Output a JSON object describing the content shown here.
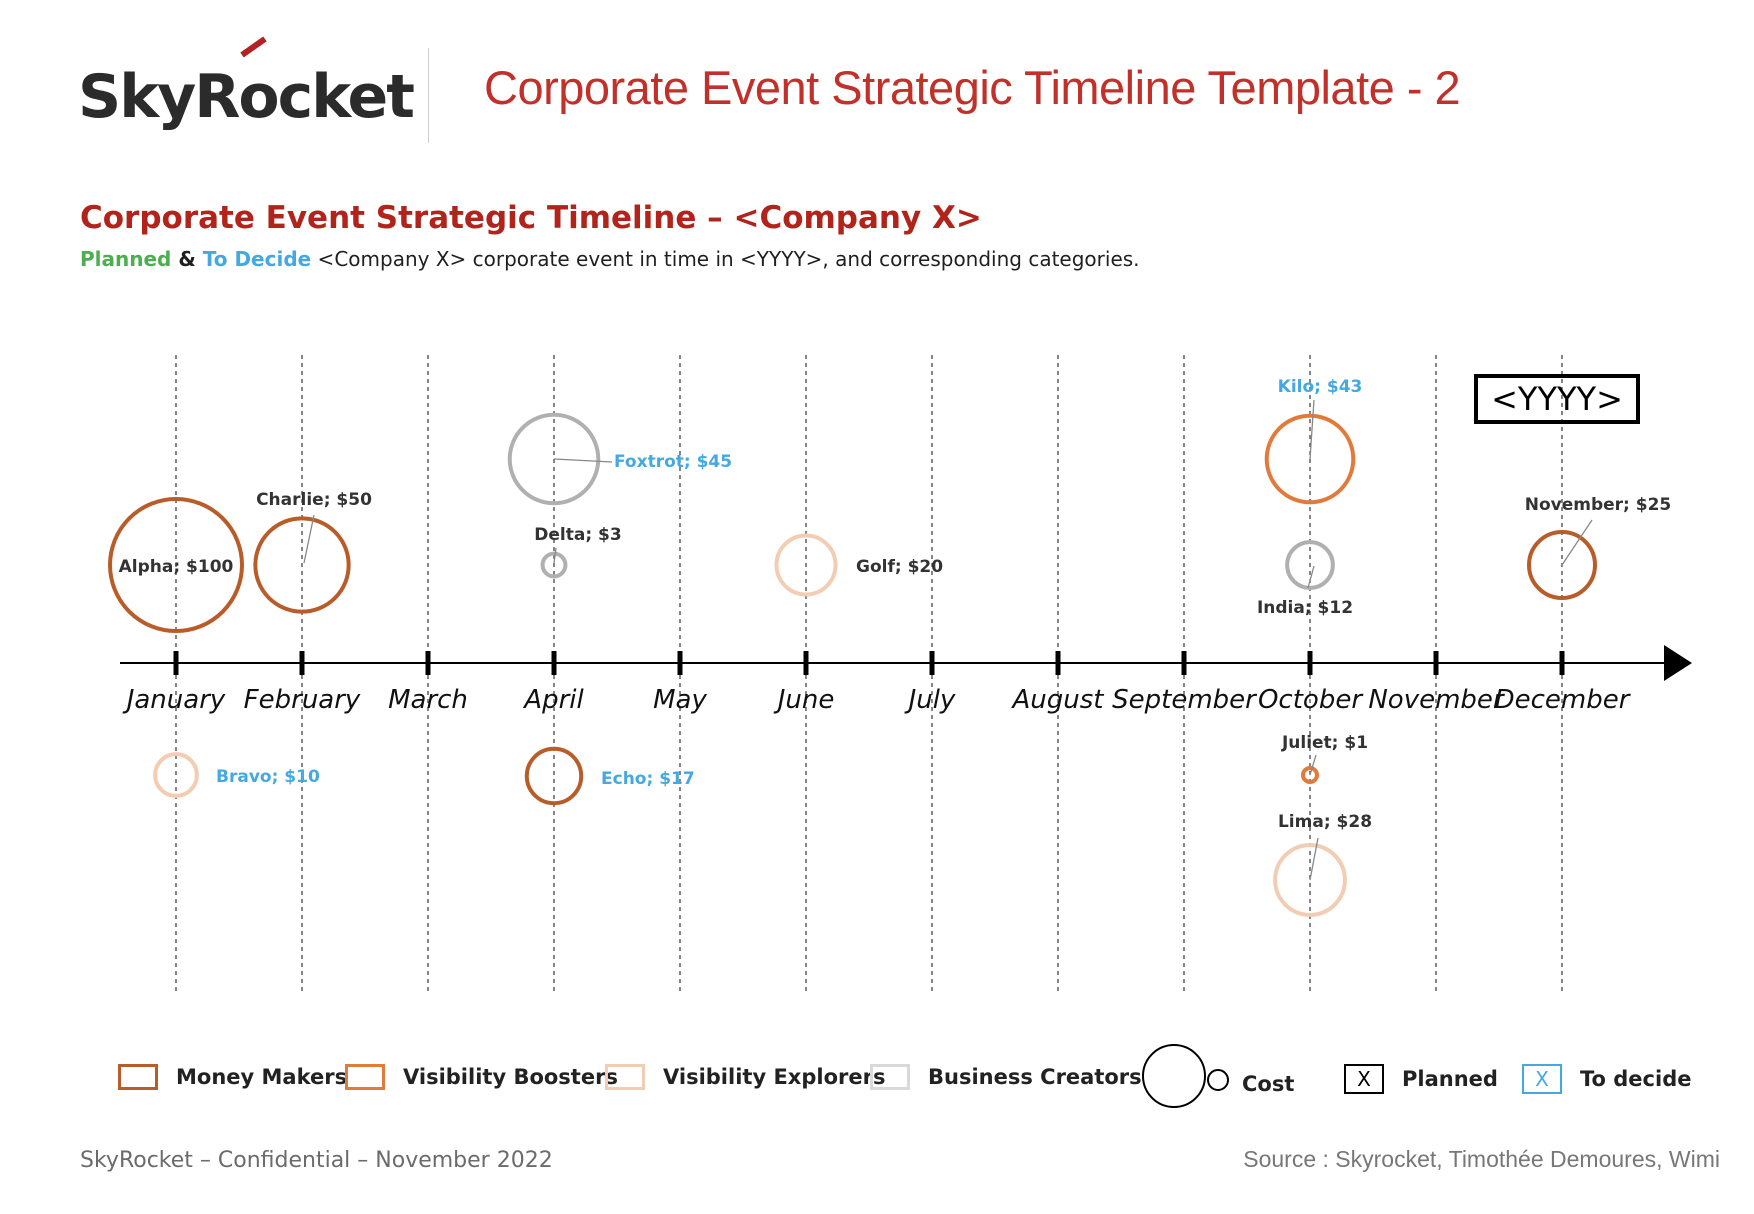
{
  "header": {
    "logo_text": "SkyRocket",
    "title": "Corporate Event Strategic Timeline Template - 2"
  },
  "section": {
    "title": "Corporate Event Strategic Timeline – <Company X>",
    "subtitle_planned": "Planned",
    "subtitle_amp": " & ",
    "subtitle_decide": "To Decide",
    "subtitle_rest": " <Company X> corporate event in time in <YYYY>, and corresponding categories."
  },
  "year_label": "<YYYY>",
  "colors": {
    "money_makers": "#b85c2a",
    "visibility_boosters": "#e07b3c",
    "visibility_explorers": "#f2cdb3",
    "business_creators": "#b0b0b0",
    "planned_label": "#333333",
    "to_decide_label": "#45a9e0",
    "title_red": "#c0312b"
  },
  "chart_data": {
    "type": "bubble-timeline",
    "categories": [
      "January",
      "February",
      "March",
      "April",
      "May",
      "June",
      "July",
      "August",
      "September",
      "October",
      "November",
      "December"
    ],
    "events": [
      {
        "name": "Alpha",
        "cost": 100,
        "month": "January",
        "side": "above",
        "category": "Money Makers",
        "status": "Planned",
        "label": "Alpha;  $100"
      },
      {
        "name": "Bravo",
        "cost": 10,
        "month": "January",
        "side": "below",
        "category": "Visibility Explorers",
        "status": "To decide",
        "label": "Bravo;  $10"
      },
      {
        "name": "Charlie",
        "cost": 50,
        "month": "February",
        "side": "above",
        "category": "Money Makers",
        "status": "Planned",
        "label": "Charlie;  $50"
      },
      {
        "name": "Delta",
        "cost": 3,
        "month": "April",
        "side": "above",
        "category": "Business Creators",
        "status": "Planned",
        "label": "Delta;  $3"
      },
      {
        "name": "Echo",
        "cost": 17,
        "month": "April",
        "side": "below",
        "category": "Money Makers",
        "status": "To decide",
        "label": "Echo;  $17"
      },
      {
        "name": "Foxtrot",
        "cost": 45,
        "month": "April",
        "side": "above",
        "category": "Business Creators",
        "status": "To decide",
        "label": "Foxtrot;  $45"
      },
      {
        "name": "Golf",
        "cost": 20,
        "month": "June",
        "side": "above",
        "category": "Visibility Explorers",
        "status": "Planned",
        "label": "Golf;  $20"
      },
      {
        "name": "India",
        "cost": 12,
        "month": "October",
        "side": "above",
        "category": "Business Creators",
        "status": "Planned",
        "label": "India;  $12"
      },
      {
        "name": "Juliet",
        "cost": 1,
        "month": "October",
        "side": "below",
        "category": "Visibility Boosters",
        "status": "Planned",
        "label": "Juliet;  $1"
      },
      {
        "name": "Kilo",
        "cost": 43,
        "month": "October",
        "side": "above",
        "category": "Visibility Boosters",
        "status": "To decide",
        "label": "Kilo;  $43"
      },
      {
        "name": "Lima",
        "cost": 28,
        "month": "October",
        "side": "below",
        "category": "Visibility Explorers",
        "status": "Planned",
        "label": "Lima;  $28"
      },
      {
        "name": "November",
        "cost": 25,
        "month": "December",
        "side": "above",
        "category": "Money Makers",
        "status": "Planned",
        "label": "November;  $25"
      }
    ]
  },
  "legend": {
    "money_makers": "Money Makers",
    "visibility_boosters": "Visibility Boosters",
    "visibility_explorers": "Visibility Explorers",
    "business_creators": "Business Creators",
    "cost": "Cost",
    "planned": "Planned",
    "to_decide": "To decide",
    "x_mark": "X"
  },
  "footer": {
    "left": "SkyRocket – Confidential – November 2022",
    "right": "Source : Skyrocket, Timothée Demoures, Wimi"
  }
}
